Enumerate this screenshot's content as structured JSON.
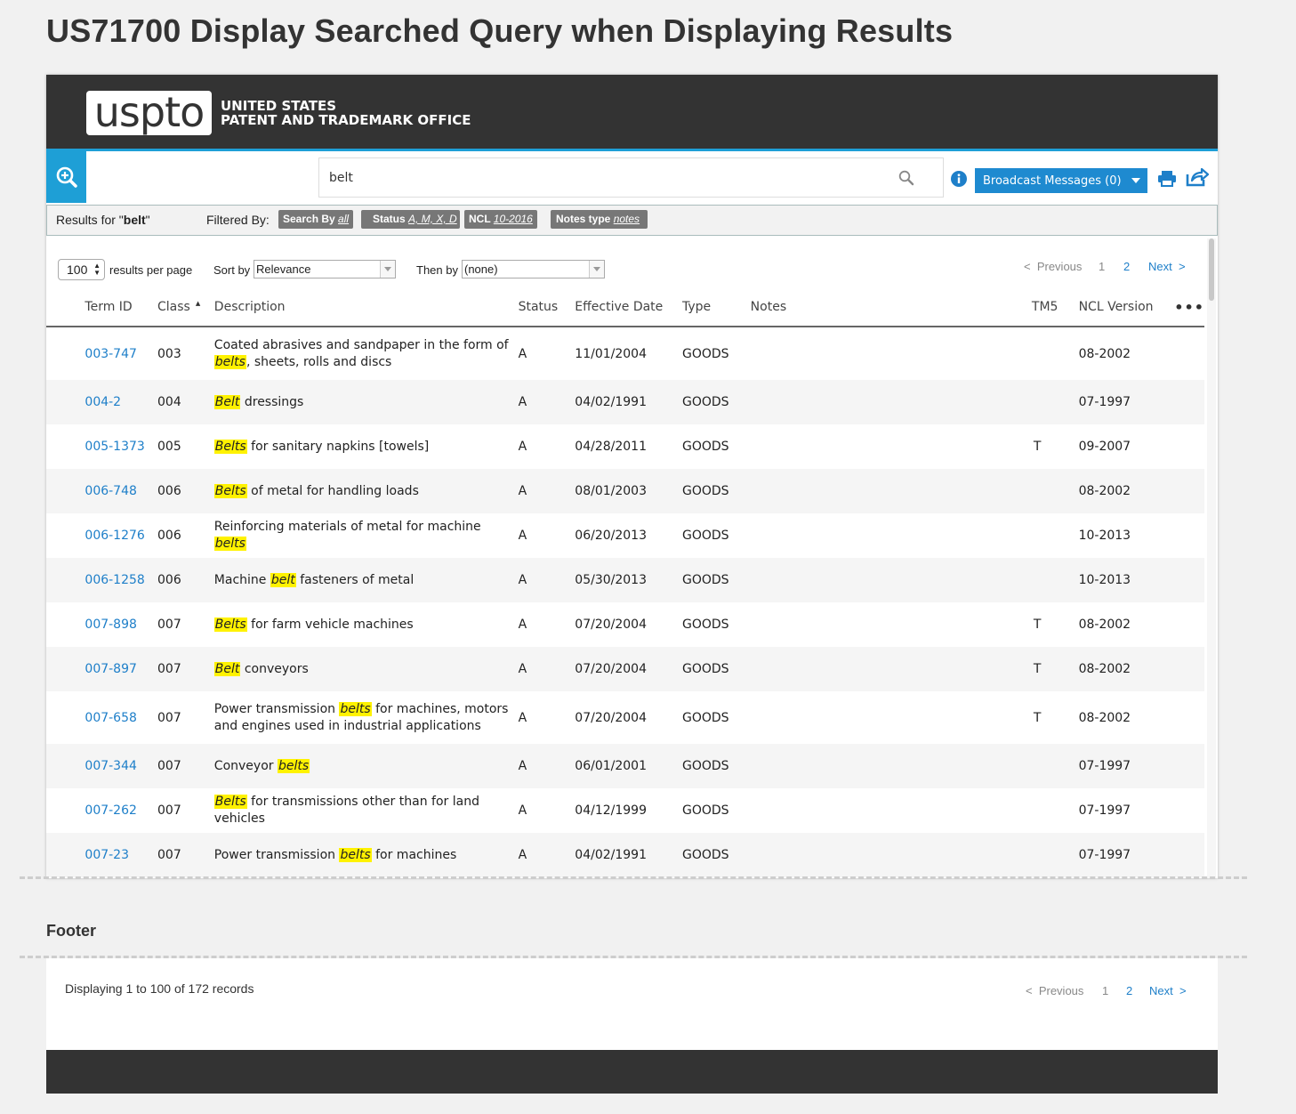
{
  "page_heading": "US71700 Display Searched Query when Displaying Results",
  "header": {
    "logo_text": "uspto",
    "agency_line1": "UNITED STATES",
    "agency_line2": "PATENT AND TRADEMARK OFFICE",
    "accent_color": "#1e9fd6"
  },
  "search": {
    "value": "belt",
    "broadcast_label": "Broadcast Messages (0)"
  },
  "filter_bar": {
    "results_prefix": "Results for \"",
    "results_query": "belt",
    "results_suffix": "\"",
    "filtered_label": "Filtered By:",
    "chips": [
      {
        "label": "Search By",
        "value": "all"
      },
      {
        "label": "Status",
        "value": "A, M, X, D"
      },
      {
        "label": "NCL",
        "value": "10-2016"
      },
      {
        "label": "Notes type",
        "value": "notes"
      }
    ]
  },
  "controls": {
    "per_page_value": "100",
    "per_page_label": "results per page",
    "sort_label": "Sort by",
    "sort_value": "Relevance",
    "then_label": "Then by",
    "then_value": "(none)"
  },
  "pagination": {
    "previous": "Previous",
    "pages": [
      "1",
      "2"
    ],
    "next": "Next",
    "prev_glyph": "<",
    "next_glyph": ">"
  },
  "table": {
    "columns": [
      "Term ID",
      "Class",
      "Description",
      "Status",
      "Effective Date",
      "Type",
      "Notes",
      "TM5",
      "NCL Version"
    ],
    "more_glyph": "•••",
    "rows": [
      {
        "term_id": "003-747",
        "class": "003",
        "desc_pre": "Coated abrasives and sandpaper in the form of ",
        "desc_hl": "belts",
        "desc_post": ", sheets, rolls and discs",
        "status": "A",
        "date": "11/01/2004",
        "type": "GOODS",
        "notes": "",
        "tm5": "",
        "ncl": "08-2002"
      },
      {
        "term_id": "004-2",
        "class": "004",
        "desc_pre": "",
        "desc_hl": "Belt",
        "desc_post": " dressings",
        "status": "A",
        "date": "04/02/1991",
        "type": "GOODS",
        "notes": "",
        "tm5": "",
        "ncl": "07-1997"
      },
      {
        "term_id": "005-1373",
        "class": "005",
        "desc_pre": "",
        "desc_hl": "Belts",
        "desc_post": " for sanitary napkins [towels]",
        "status": "A",
        "date": "04/28/2011",
        "type": "GOODS",
        "notes": "",
        "tm5": "T",
        "ncl": "09-2007"
      },
      {
        "term_id": "006-748",
        "class": "006",
        "desc_pre": "",
        "desc_hl": "Belts",
        "desc_post": " of metal for handling loads",
        "status": "A",
        "date": "08/01/2003",
        "type": "GOODS",
        "notes": "",
        "tm5": "",
        "ncl": "08-2002"
      },
      {
        "term_id": "006-1276",
        "class": "006",
        "desc_pre": "Reinforcing materials of metal for machine ",
        "desc_hl": "belts",
        "desc_post": "",
        "status": "A",
        "date": "06/20/2013",
        "type": "GOODS",
        "notes": "",
        "tm5": "",
        "ncl": "10-2013"
      },
      {
        "term_id": "006-1258",
        "class": "006",
        "desc_pre": "Machine ",
        "desc_hl": "belt",
        "desc_post": " fasteners of metal",
        "status": "A",
        "date": "05/30/2013",
        "type": "GOODS",
        "notes": "",
        "tm5": "",
        "ncl": "10-2013"
      },
      {
        "term_id": "007-898",
        "class": "007",
        "desc_pre": "",
        "desc_hl": "Belts",
        "desc_post": " for farm vehicle machines",
        "status": "A",
        "date": "07/20/2004",
        "type": "GOODS",
        "notes": "",
        "tm5": "T",
        "ncl": "08-2002"
      },
      {
        "term_id": "007-897",
        "class": "007",
        "desc_pre": "",
        "desc_hl": "Belt",
        "desc_post": " conveyors",
        "status": "A",
        "date": "07/20/2004",
        "type": "GOODS",
        "notes": "",
        "tm5": "T",
        "ncl": "08-2002"
      },
      {
        "term_id": "007-658",
        "class": "007",
        "desc_pre": "Power transmission ",
        "desc_hl": "belts",
        "desc_post": " for machines, motors and engines used in industrial applications",
        "status": "A",
        "date": "07/20/2004",
        "type": "GOODS",
        "notes": "",
        "tm5": "T",
        "ncl": "08-2002"
      },
      {
        "term_id": "007-344",
        "class": "007",
        "desc_pre": "Conveyor ",
        "desc_hl": "belts",
        "desc_post": "",
        "status": "A",
        "date": "06/01/2001",
        "type": "GOODS",
        "notes": "",
        "tm5": "",
        "ncl": "07-1997"
      },
      {
        "term_id": "007-262",
        "class": "007",
        "desc_pre": "",
        "desc_hl": "Belts",
        "desc_post": " for transmissions other than for land vehicles",
        "status": "A",
        "date": "04/12/1999",
        "type": "GOODS",
        "notes": "",
        "tm5": "",
        "ncl": "07-1997"
      },
      {
        "term_id": "007-23",
        "class": "007",
        "desc_pre": "Power transmission ",
        "desc_hl": "belts",
        "desc_post": " for machines",
        "status": "A",
        "date": "04/02/1991",
        "type": "GOODS",
        "notes": "",
        "tm5": "",
        "ncl": "07-1997"
      }
    ]
  },
  "footer": {
    "heading": "Footer",
    "records_text": "Displaying 1 to 100 of 172 records"
  }
}
